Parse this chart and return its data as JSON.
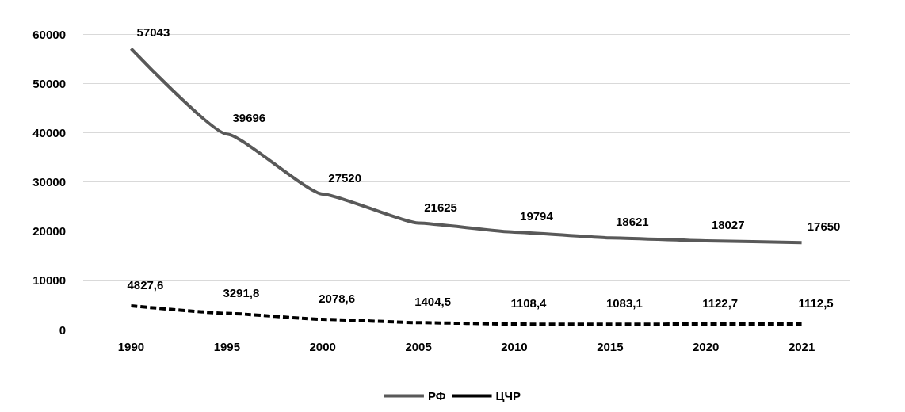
{
  "chart_data": {
    "type": "line",
    "categories": [
      "1990",
      "1995",
      "2000",
      "2005",
      "2010",
      "2015",
      "2020",
      "2021"
    ],
    "series": [
      {
        "name": "РФ",
        "color": "#595959",
        "line_style": "solid",
        "values": [
          57043,
          39696,
          27520,
          21625,
          19794,
          18621,
          18027,
          17650
        ],
        "value_labels": [
          "57043",
          "39696",
          "27520",
          "21625",
          "19794",
          "18621",
          "18027",
          "17650"
        ]
      },
      {
        "name": "ЦЧР",
        "color": "#000000",
        "line_style": "dashed",
        "values": [
          4827.6,
          3291.8,
          2078.6,
          1404.5,
          1108.4,
          1083.1,
          1122.7,
          1112.5
        ],
        "value_labels": [
          "4827,6",
          "3291,8",
          "2078,6",
          "1404,5",
          "1108,4",
          "1083,1",
          "1122,7",
          "1112,5"
        ]
      }
    ],
    "ylim": [
      0,
      60000
    ],
    "yticks": [
      0,
      10000,
      20000,
      30000,
      40000,
      50000,
      60000
    ],
    "grid": "y",
    "legend": "bottom",
    "marker": "none"
  }
}
